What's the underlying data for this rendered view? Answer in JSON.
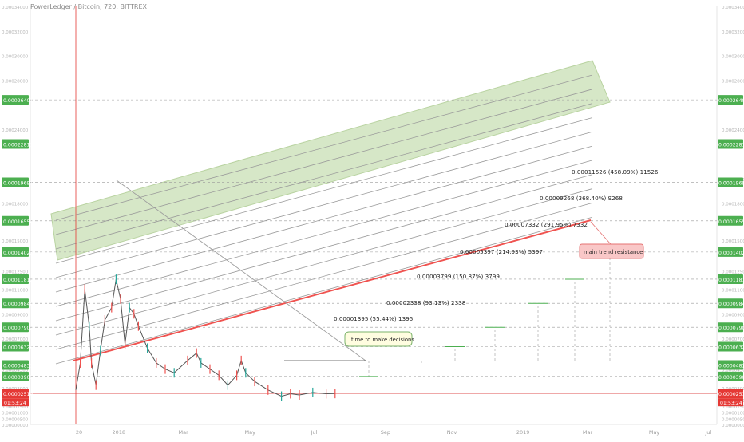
{
  "chart_data": {
    "type": "line",
    "title": "PowerLedger / Bitcoin, 720, BITTREX",
    "ylim": [
      0,
      0.00034
    ],
    "xlim": [
      0,
      1
    ],
    "y_ticks": [
      "0.00034000",
      "0.00032000",
      "0.00030000",
      "0.00028000",
      "0.00024000",
      "0.00020000",
      "0.00018000",
      "0.00015000",
      "0.00012500",
      "0.00011000",
      "0.00009000",
      "0.00008000",
      "0.00007000",
      "0.00005000",
      "0.00004500",
      "0.00003000",
      "0.00002000",
      "0.00001500",
      "0.00001000",
      "0.00000500",
      "0.00000000"
    ],
    "x_ticks": [
      {
        "label": "20",
        "x": 0.03
      },
      {
        "label": "2018",
        "x": 0.085
      },
      {
        "label": "Mar",
        "x": 0.185
      },
      {
        "label": "May",
        "x": 0.285
      },
      {
        "label": "Jul",
        "x": 0.385
      },
      {
        "label": "Sep",
        "x": 0.49
      },
      {
        "label": "Nov",
        "x": 0.59
      },
      {
        "label": "2019",
        "x": 0.695
      },
      {
        "label": "Mar",
        "x": 0.795
      },
      {
        "label": "May",
        "x": 0.895
      },
      {
        "label": "Jul",
        "x": 0.98
      }
    ],
    "price_levels": [
      {
        "label": "0.00026401",
        "value": 0.00026401
      },
      {
        "label": "0.00022811",
        "value": 0.00022811
      },
      {
        "label": "0.00019691",
        "value": 0.00019691
      },
      {
        "label": "0.00016558",
        "value": 0.00016558
      },
      {
        "label": "0.00014023",
        "value": 0.00014023
      },
      {
        "label": "0.00011812",
        "value": 0.00011812
      },
      {
        "label": "0.00009848",
        "value": 9.848e-05
      },
      {
        "label": "0.00007902",
        "value": 7.902e-05
      },
      {
        "label": "0.00006326",
        "value": 6.326e-05
      },
      {
        "label": "0.00004831",
        "value": 4.831e-05
      },
      {
        "label": "0.00003905",
        "value": 3.905e-05
      }
    ],
    "current_price": {
      "label": "0.00002518",
      "value": 2.518e-05,
      "countdown": "01:53:24"
    },
    "targets": [
      {
        "text": "0.00001395 (55.44%) 1395",
        "x": 0.65,
        "value": 3.905e-05
      },
      {
        "text": "0.00002338 (93.13%) 2338",
        "x": 0.73,
        "value": 4.831e-05
      },
      {
        "text": "0.00003799 (150.87%) 3799",
        "x": 0.795,
        "value": 6.326e-05
      },
      {
        "text": "0.00005397 (214.93%) 5397",
        "x": 0.88,
        "value": 7.902e-05
      },
      {
        "text": "0.00007332 (291.95%) 7332",
        "x": 0.97,
        "value": 9.848e-05
      },
      {
        "text": "0.00009268 (368.40%) 9268",
        "x": 1.0,
        "value": 0.00011812
      },
      {
        "text": "0.00011526 (458.09%) 11526",
        "x": 1.0,
        "value": 0.00014023
      }
    ],
    "annotations": {
      "decisions": "time to make decisions",
      "resistance": "main trend resistance"
    },
    "series": [
      {
        "values": [
          [
            0.0,
            2.8e-05
          ],
          [
            0.01,
            5e-05
          ],
          [
            0.02,
            0.00011
          ],
          [
            0.03,
            8e-05
          ],
          [
            0.035,
            5e-05
          ],
          [
            0.045,
            3.2e-05
          ],
          [
            0.055,
            6e-05
          ],
          [
            0.065,
            8.5e-05
          ],
          [
            0.08,
            9.5e-05
          ],
          [
            0.09,
            0.000118
          ],
          [
            0.1,
            0.000102
          ],
          [
            0.11,
            6.5e-05
          ],
          [
            0.12,
            9.5e-05
          ],
          [
            0.13,
            9e-05
          ],
          [
            0.14,
            8e-05
          ],
          [
            0.16,
            6.2e-05
          ],
          [
            0.18,
            5e-05
          ],
          [
            0.2,
            4.5e-05
          ],
          [
            0.22,
            4.2e-05
          ],
          [
            0.25,
            5.2e-05
          ],
          [
            0.27,
            5.8e-05
          ],
          [
            0.28,
            5e-05
          ],
          [
            0.3,
            4.5e-05
          ],
          [
            0.32,
            4e-05
          ],
          [
            0.34,
            3.2e-05
          ],
          [
            0.36,
            4e-05
          ],
          [
            0.37,
            5.2e-05
          ],
          [
            0.38,
            4.2e-05
          ],
          [
            0.4,
            3.5e-05
          ],
          [
            0.43,
            2.8e-05
          ],
          [
            0.46,
            2.3e-05
          ],
          [
            0.48,
            2.5e-05
          ],
          [
            0.5,
            2.4e-05
          ],
          [
            0.53,
            2.6e-05
          ],
          [
            0.56,
            2.5e-05
          ],
          [
            0.58,
            2.52e-05
          ]
        ]
      }
    ]
  }
}
